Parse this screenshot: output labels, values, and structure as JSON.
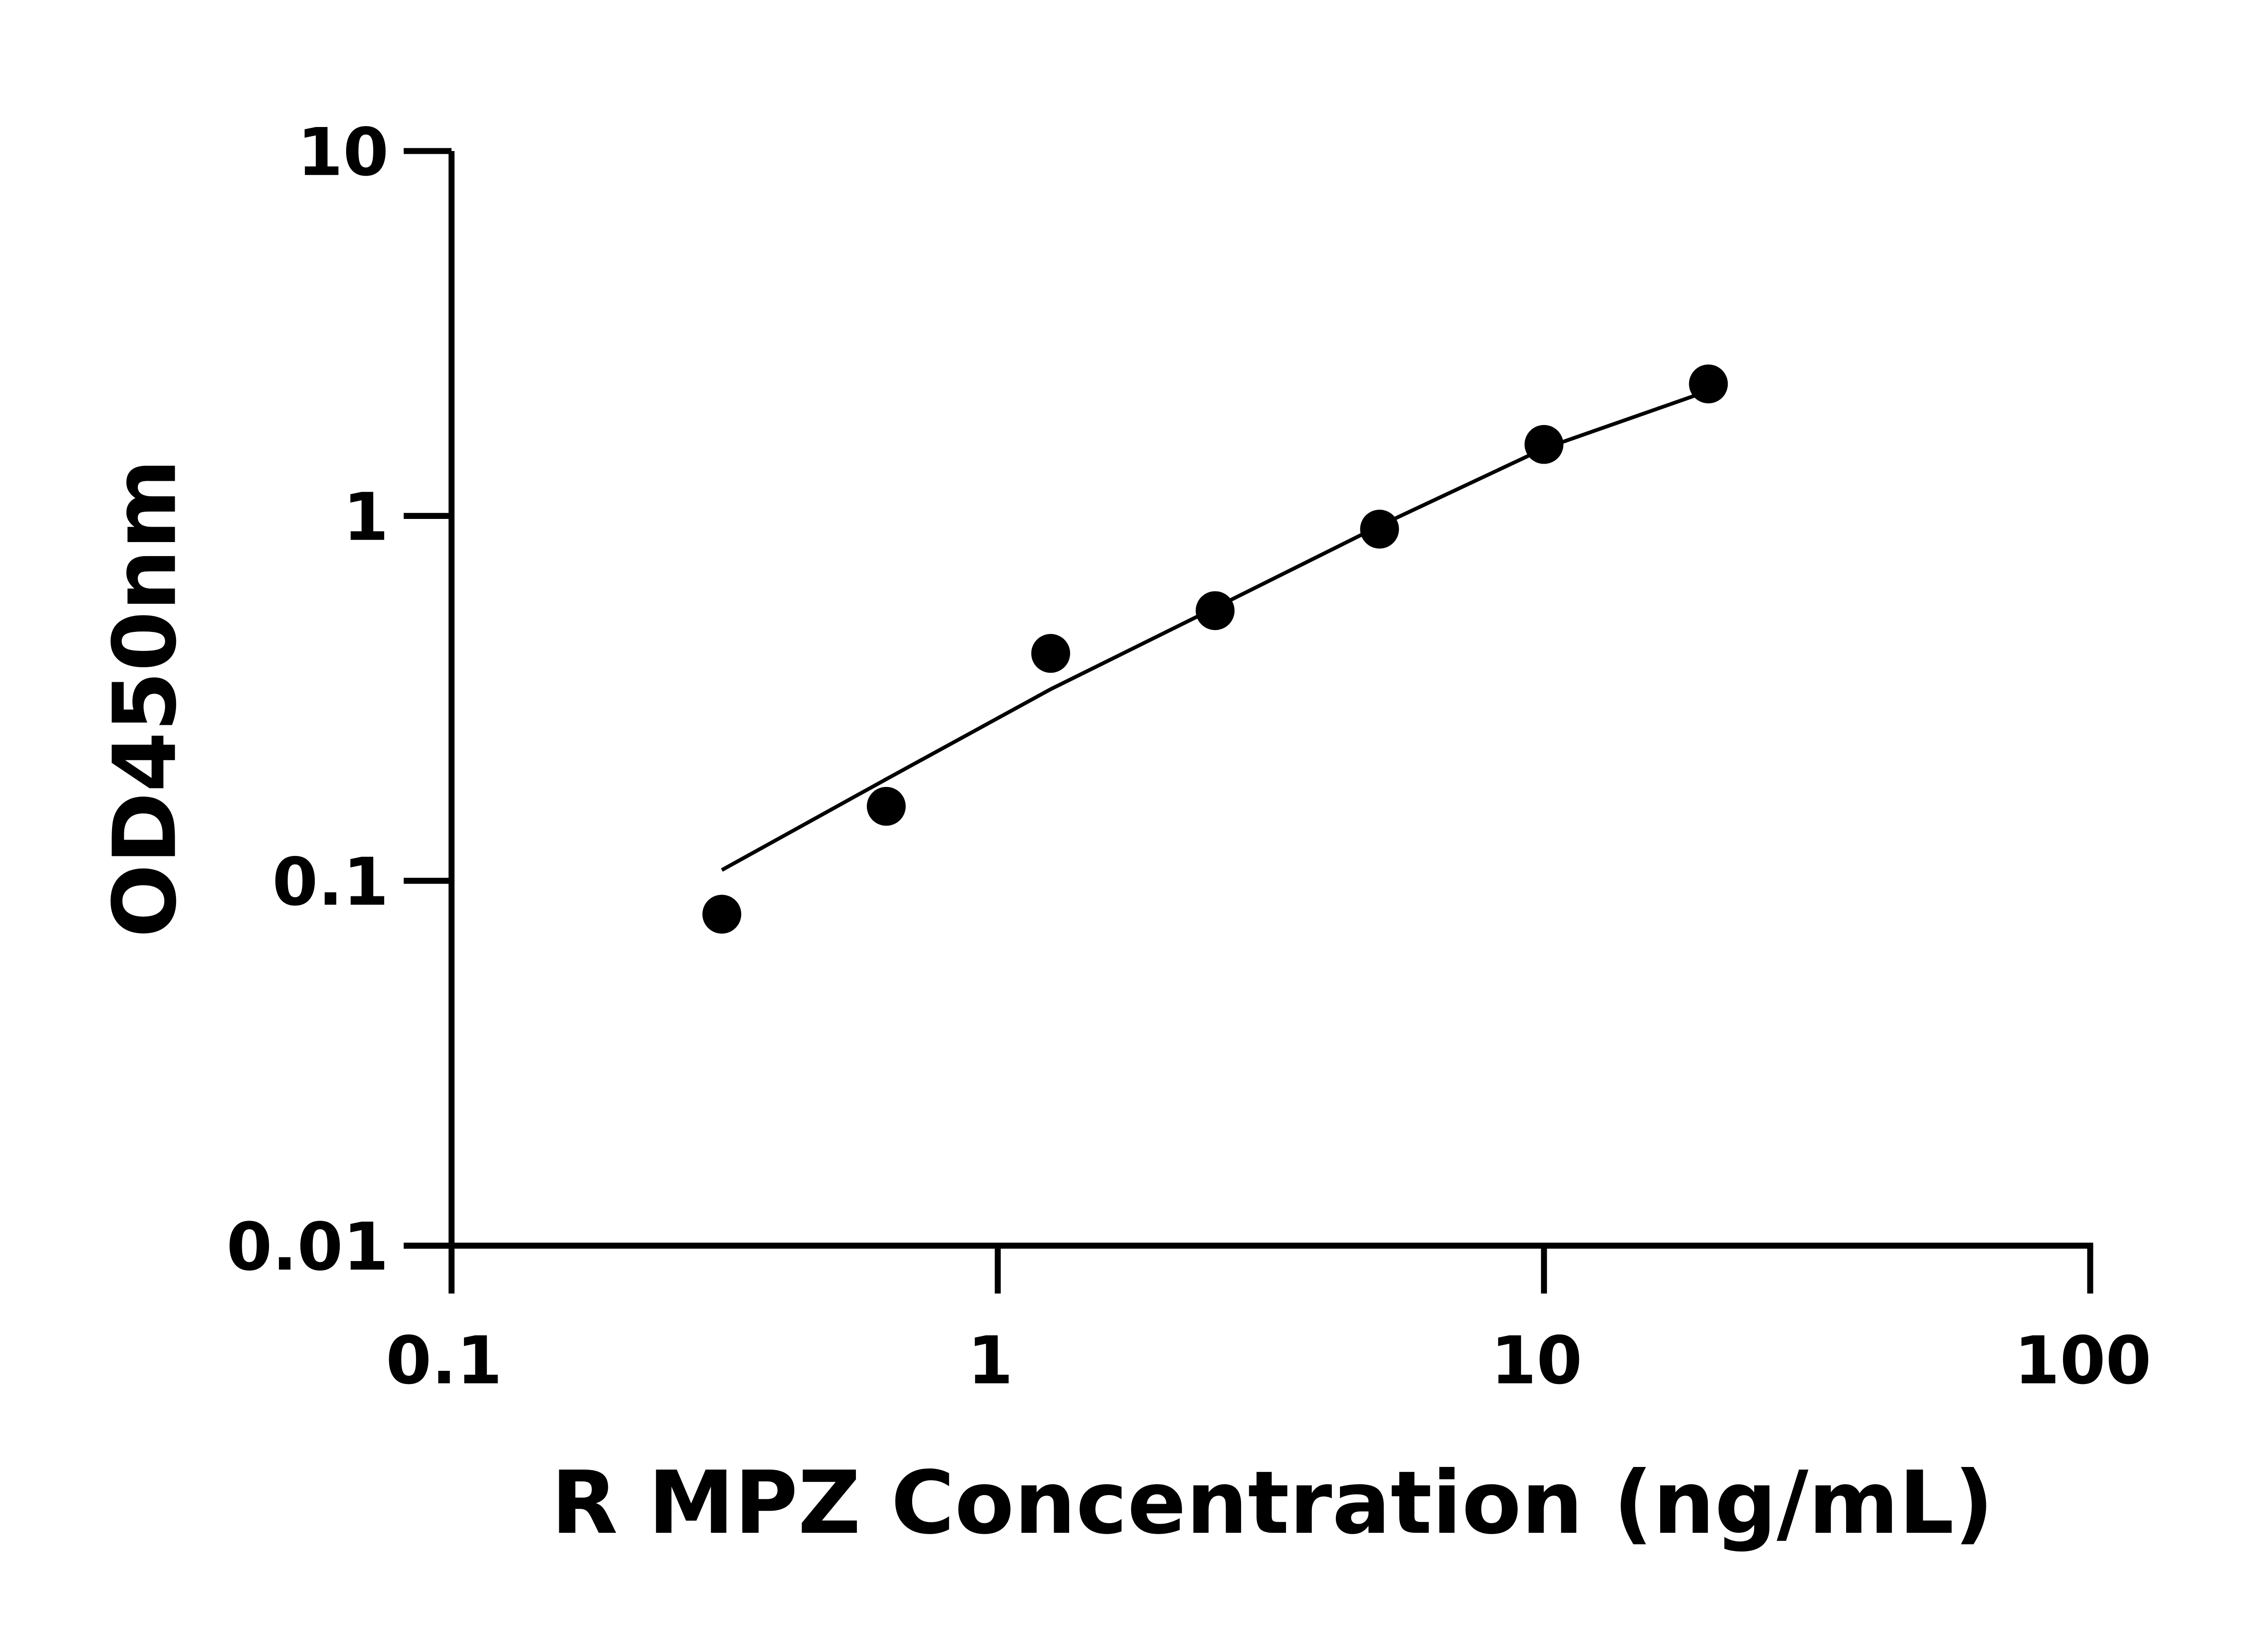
{
  "chart_data": {
    "type": "scatter",
    "title": "",
    "xlabel": "R MPZ Concentration (ng/mL)",
    "ylabel": "OD450nm",
    "xscale": "log",
    "yscale": "log",
    "xlim": [
      0.1,
      100
    ],
    "ylim": [
      0.01,
      10
    ],
    "xticks": [
      "0.1",
      "1",
      "10",
      "100"
    ],
    "yticks": [
      "0.01",
      "0.1",
      "1",
      "10"
    ],
    "grid": false,
    "marker_color": "#000000",
    "points": {
      "x": [
        0.3125,
        0.625,
        1.25,
        2.5,
        5,
        10,
        20
      ],
      "y": [
        0.081,
        0.16,
        0.42,
        0.55,
        0.92,
        1.57,
        2.3
      ]
    },
    "fit_curve": {
      "x": [
        0.3125,
        0.625,
        1.25,
        2.5,
        5,
        10,
        20
      ],
      "y": [
        0.107,
        0.19,
        0.335,
        0.56,
        0.94,
        1.53,
        2.2
      ]
    }
  }
}
